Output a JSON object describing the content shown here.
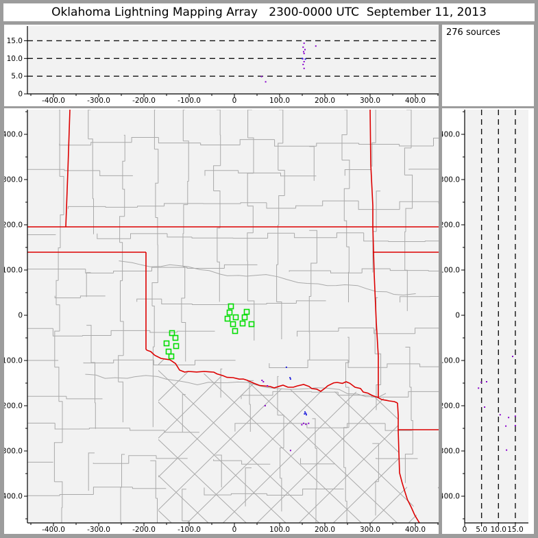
{
  "title": "Oklahoma Lightning Mapping Array   2300-0000 UTC  September 11, 2013",
  "info_box": {
    "sources_label": "276 sources"
  },
  "colors": {
    "background": "#9c9c9c",
    "panel": "#ffffff",
    "plot_bg": "#f2f2f2",
    "axis": "#000000",
    "dash_line": "#111111",
    "county_line": "#a9a9a9",
    "state_line": "#dd0000",
    "station": "#00dd00",
    "source_purple": "#8800cc",
    "source_blue": "#2222dd"
  },
  "chart_data": [
    {
      "id": "ew_altitude",
      "type": "scatter",
      "position": "top",
      "x_axis": {
        "min": -457.6,
        "max": 454.5,
        "minor_step": 50,
        "values": [
          -400,
          -300,
          -200,
          -100,
          0,
          100,
          200,
          300,
          400
        ],
        "labels": [
          "-400.0",
          "-300.0",
          "-200.0",
          "-100.0",
          "0",
          "100.0",
          "200.0",
          "300.0",
          "400.0"
        ]
      },
      "y_axis": {
        "min": 0,
        "max": 19.1,
        "values": [
          0,
          5,
          10,
          15
        ],
        "labels": [
          "0",
          "5.0",
          "10.0",
          "15.0"
        ],
        "dashed_gridlines": [
          5,
          10,
          15
        ]
      },
      "points": [
        [
          154,
          14.3,
          "p"
        ],
        [
          152,
          13.2,
          "p"
        ],
        [
          156,
          12.5,
          "p"
        ],
        [
          153,
          11.9,
          "p"
        ],
        [
          154,
          11.4,
          "p"
        ],
        [
          151,
          9.9,
          "p"
        ],
        [
          150,
          10.0,
          "b"
        ],
        [
          157,
          9.8,
          "b"
        ],
        [
          154,
          9.1,
          "p"
        ],
        [
          152,
          8.3,
          "p"
        ],
        [
          154,
          7.2,
          "p"
        ],
        [
          180,
          13.5,
          "p"
        ],
        [
          60,
          4.9,
          "p"
        ],
        [
          69,
          3.4,
          "p"
        ]
      ]
    },
    {
      "id": "plan_view",
      "type": "scatter",
      "position": "main",
      "x_axis": {
        "min": -457.6,
        "max": 454.5,
        "minor_step": 50,
        "values": [
          -400,
          -300,
          -200,
          -100,
          0,
          100,
          200,
          300,
          400
        ],
        "labels": [
          "-400.0",
          "-300.0",
          "-200.0",
          "-100.0",
          "0",
          "100.0",
          "200.0",
          "300.0",
          "400.0"
        ]
      },
      "y_axis": {
        "min": -459.1,
        "max": 454.5,
        "minor_step": 50,
        "values": [
          400,
          300,
          200,
          100,
          0,
          -100,
          -200,
          -300,
          -400
        ],
        "labels": [
          "400.0",
          "300.0",
          "200.0",
          "100.0",
          "0",
          "-100.0",
          "-200.0",
          "-300.0",
          "-400.0"
        ]
      },
      "stations": [
        [
          -7.6,
          19.7
        ],
        [
          -10.6,
          6.1
        ],
        [
          -15.2,
          -7.6
        ],
        [
          3.0,
          -4.5
        ],
        [
          -3.0,
          -19.7
        ],
        [
          1.5,
          -34.8
        ],
        [
          27.3,
          7.6
        ],
        [
          22.7,
          -4.5
        ],
        [
          18.2,
          -18.2
        ],
        [
          37.9,
          -19.7
        ],
        [
          -137.9,
          -39.4
        ],
        [
          -130.3,
          -50.0
        ],
        [
          -150.0,
          -62.1
        ],
        [
          -128.8,
          -68.2
        ],
        [
          -145.5,
          -80.3
        ],
        [
          -139.4,
          -90.9
        ]
      ],
      "sources": [
        [
          115,
          -115,
          "b"
        ],
        [
          123,
          -138,
          "b"
        ],
        [
          124,
          -141,
          "b"
        ],
        [
          61,
          -144,
          "p"
        ],
        [
          64,
          -147,
          "p"
        ],
        [
          73,
          -156,
          "p"
        ],
        [
          68,
          -200,
          "p"
        ],
        [
          156,
          -214,
          "b"
        ],
        [
          158,
          -217,
          "b"
        ],
        [
          155,
          -218,
          "b"
        ],
        [
          159,
          -220,
          "b"
        ],
        [
          153,
          -239,
          "p"
        ],
        [
          158,
          -241,
          "p"
        ],
        [
          164,
          -239,
          "p"
        ],
        [
          149,
          -242,
          "p"
        ],
        [
          124,
          -299,
          "p"
        ]
      ],
      "state_borders": [
        {
          "name": "kansas-south-border",
          "wiggle": 0,
          "pts": [
            [
              -457.6,
              195.5
            ],
            [
              454.5,
              195.5
            ]
          ]
        },
        {
          "name": "texas-panhandle-east-border",
          "wiggle": 0,
          "pts": [
            [
              -363.6,
              454.5
            ],
            [
              -368.2,
              318.2
            ],
            [
              -372.7,
              195.5
            ]
          ]
        },
        {
          "name": "panhandle-south-border",
          "wiggle": 0,
          "pts": [
            [
              -457.6,
              139.4
            ],
            [
              -195.5,
              139.4
            ]
          ]
        },
        {
          "name": "hundredth-meridian-border",
          "wiggle": 0,
          "pts": [
            [
              -195.5,
              139.4
            ],
            [
              -195.5,
              -75.8
            ]
          ]
        },
        {
          "name": "red-river-border",
          "wiggle": 1,
          "pts": [
            [
              -195.5,
              -75.8
            ],
            [
              -184.8,
              -80.3
            ],
            [
              -162.1,
              -95.5
            ],
            [
              -142.4,
              -98.5
            ],
            [
              -121.2,
              -121.2
            ],
            [
              -101.5,
              -124.2
            ],
            [
              -66.7,
              -124.2
            ],
            [
              -45.5,
              -125.8
            ],
            [
              -25.8,
              -133.3
            ],
            [
              -3.0,
              -137.9
            ],
            [
              19.7,
              -140.9
            ],
            [
              42.4,
              -150.0
            ],
            [
              65.2,
              -156.1
            ],
            [
              87.9,
              -160.6
            ],
            [
              107.6,
              -154.5
            ],
            [
              130.3,
              -159.1
            ],
            [
              153.0,
              -153.0
            ],
            [
              171.2,
              -162.1
            ],
            [
              190.9,
              -168.2
            ],
            [
              206.1,
              -156.1
            ],
            [
              227.3,
              -148.5
            ],
            [
              247.0,
              -147.0
            ],
            [
              266.7,
              -159.1
            ],
            [
              284.8,
              -169.7
            ],
            [
              304.5,
              -177.3
            ],
            [
              325.8,
              -186.4
            ],
            [
              342.4,
              -189.4
            ],
            [
              360.6,
              -193.9
            ]
          ]
        },
        {
          "name": "oklahoma-east-border",
          "wiggle": 0,
          "pts": [
            [
              300.0,
              457.6
            ],
            [
              301.5,
              333.3
            ],
            [
              306.1,
              242.4
            ],
            [
              306.1,
              195.5
            ],
            [
              309.1,
              90.9
            ],
            [
              313.6,
              -15.2
            ],
            [
              318.2,
              -90.9
            ],
            [
              318.2,
              -181.8
            ]
          ]
        },
        {
          "name": "missouri-arkansas-border",
          "wiggle": 0,
          "pts": [
            [
              306.1,
              139.4
            ],
            [
              459.1,
              139.4
            ]
          ]
        },
        {
          "name": "texas-arkansas-border",
          "wiggle": 1,
          "pts": [
            [
              360.6,
              -193.9
            ],
            [
              362.1,
              -253.0
            ],
            [
              365.2,
              -348.5
            ],
            [
              375.8,
              -386.4
            ],
            [
              390.9,
              -424.2
            ],
            [
              409.1,
              -459.1
            ]
          ]
        },
        {
          "name": "arkansas-louisiana-border",
          "wiggle": 0,
          "pts": [
            [
              362.1,
              -253.0
            ],
            [
              459.1,
              -253.0
            ]
          ]
        }
      ]
    },
    {
      "id": "ns_altitude",
      "type": "scatter",
      "position": "right",
      "x_axis": {
        "min": 0,
        "max": 18.9,
        "values": [
          0,
          5,
          10,
          15
        ],
        "labels": [
          "0",
          "5.0",
          "10.0",
          "15.0"
        ],
        "dashed_gridlines": [
          5,
          10,
          15
        ]
      },
      "y_axis": {
        "min": -459.1,
        "max": 454.5,
        "minor_step": 50,
        "values": [
          400,
          300,
          200,
          100,
          0,
          -100,
          -200,
          -300,
          -400
        ],
        "labels": [
          "400.0",
          "300.0",
          "200.0",
          "100.0",
          "0",
          "-100.0",
          "-200.0",
          "-300.0",
          "-400.0"
        ]
      },
      "points": [
        [
          14.2,
          -91,
          "p"
        ],
        [
          4.9,
          -148,
          "p"
        ],
        [
          6.5,
          -147,
          "p"
        ],
        [
          4.1,
          -161,
          "p"
        ],
        [
          5.9,
          -203,
          "p"
        ],
        [
          10.5,
          -220,
          "p"
        ],
        [
          13.0,
          -226,
          "p"
        ],
        [
          15.0,
          -223,
          "p"
        ],
        [
          12.2,
          -245,
          "p"
        ],
        [
          15.0,
          -244,
          "p"
        ],
        [
          12.4,
          -298,
          "p"
        ]
      ]
    }
  ]
}
